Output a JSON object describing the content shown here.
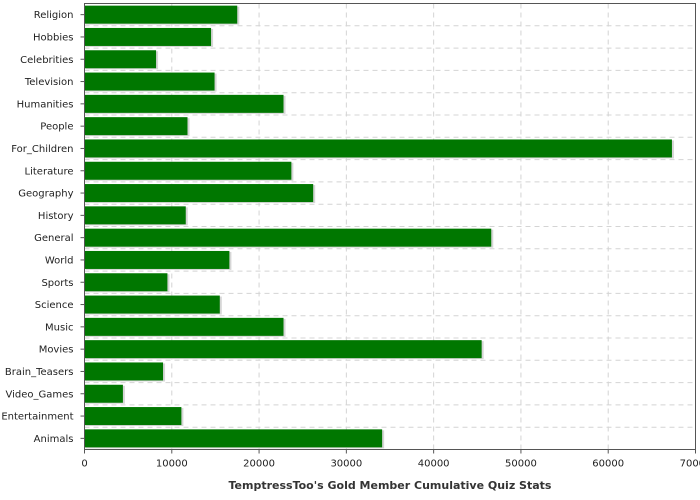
{
  "chart_data": {
    "type": "bar",
    "orientation": "horizontal",
    "title": "",
    "xlabel": "TemptressToo's Gold Member Cumulative Quiz Stats",
    "ylabel": "",
    "categories": [
      "Religion",
      "Hobbies",
      "Celebrities",
      "Television",
      "Humanities",
      "People",
      "For_Children",
      "Literature",
      "Geography",
      "History",
      "General",
      "World",
      "Sports",
      "Science",
      "Music",
      "Movies",
      "Brain_Teasers",
      "Video_Games",
      "Entertainment",
      "Animals"
    ],
    "values": [
      17500,
      14500,
      8200,
      14900,
      22800,
      11800,
      67300,
      23700,
      26200,
      11600,
      46600,
      16600,
      9500,
      15500,
      22800,
      45500,
      9000,
      4400,
      11100,
      34100
    ],
    "xlim": [
      0,
      70000
    ],
    "xticks": [
      "0",
      "10000",
      "20000",
      "30000",
      "40000",
      "50000",
      "60000",
      "70000"
    ],
    "grid": true,
    "bar_color": "#007700"
  }
}
